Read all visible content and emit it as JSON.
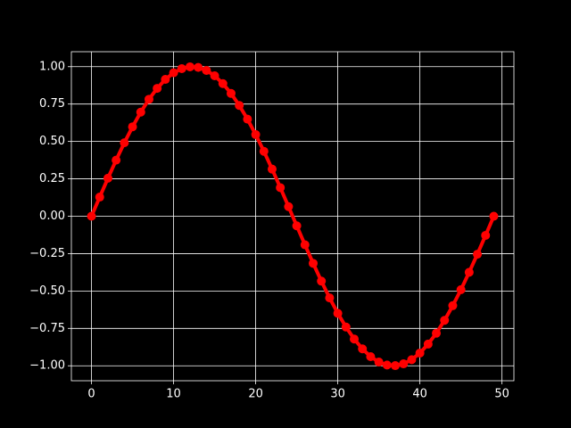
{
  "chart_data": {
    "type": "line",
    "x": [
      0,
      1,
      2,
      3,
      4,
      5,
      6,
      7,
      8,
      9,
      10,
      11,
      12,
      13,
      14,
      15,
      16,
      17,
      18,
      19,
      20,
      21,
      22,
      23,
      24,
      25,
      26,
      27,
      28,
      29,
      30,
      31,
      32,
      33,
      34,
      35,
      36,
      37,
      38,
      39,
      40,
      41,
      42,
      43,
      44,
      45,
      46,
      47,
      48,
      49
    ],
    "values": [
      0,
      0.128,
      0.254,
      0.375,
      0.491,
      0.598,
      0.696,
      0.782,
      0.855,
      0.915,
      0.959,
      0.987,
      0.999,
      0.995,
      0.975,
      0.939,
      0.887,
      0.821,
      0.741,
      0.649,
      0.546,
      0.434,
      0.315,
      0.191,
      0.064,
      -0.064,
      -0.191,
      -0.315,
      -0.434,
      -0.546,
      -0.649,
      -0.741,
      -0.821,
      -0.887,
      -0.939,
      -0.975,
      -0.995,
      -0.999,
      -0.987,
      -0.959,
      -0.915,
      -0.855,
      -0.782,
      -0.696,
      -0.598,
      -0.491,
      -0.375,
      -0.254,
      -0.128,
      0
    ],
    "color": "#ff0000",
    "xlim": [
      -2.45,
      51.45
    ],
    "xticks": [
      0,
      10,
      20,
      30,
      40,
      50
    ],
    "ylim": [
      -1.1,
      1.1
    ],
    "yticks": [
      {
        "value": -1,
        "label": "−1.00"
      },
      {
        "value": -0.75,
        "label": "−0.75"
      },
      {
        "value": -0.5,
        "label": "−0.50"
      },
      {
        "value": -0.25,
        "label": "−0.25"
      },
      {
        "value": 0,
        "label": "0.00"
      },
      {
        "value": 0.25,
        "label": "0.25"
      },
      {
        "value": 0.5,
        "label": "0.50"
      },
      {
        "value": 0.75,
        "label": "0.75"
      },
      {
        "value": 1,
        "label": "1.00"
      }
    ],
    "grid": true
  }
}
